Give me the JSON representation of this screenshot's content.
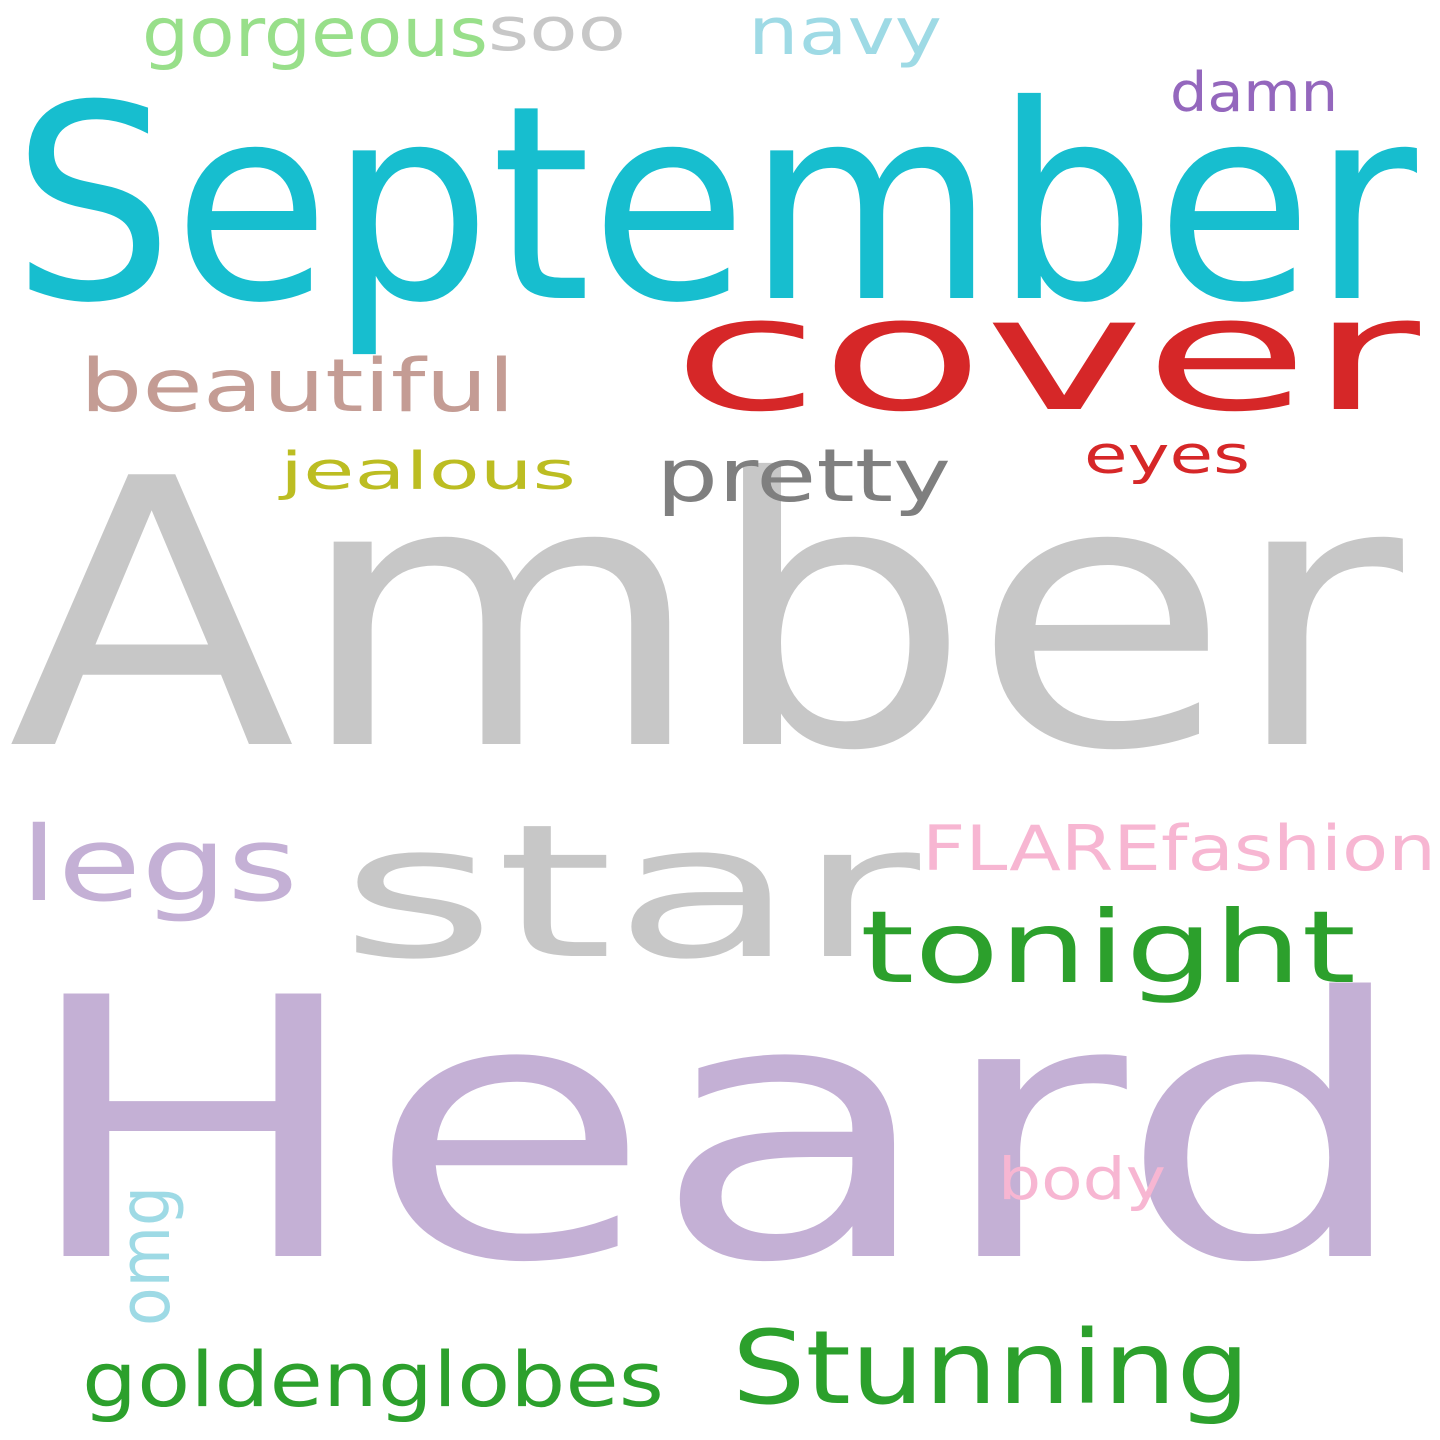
{
  "words": [
    {
      "id": "heard",
      "text": "Heard",
      "color": "#c4b0d5"
    },
    {
      "id": "amber",
      "text": "Amber",
      "color": "#c7c7c7"
    },
    {
      "id": "september",
      "text": "September",
      "color": "#17becf"
    },
    {
      "id": "cover",
      "text": "cover",
      "color": "#d62728"
    },
    {
      "id": "star",
      "text": "star",
      "color": "#c7c7c7"
    },
    {
      "id": "tonight",
      "text": "tonight",
      "color": "#2ca02c"
    },
    {
      "id": "stunning",
      "text": "Stunning",
      "color": "#2ca02c"
    },
    {
      "id": "legs",
      "text": "legs",
      "color": "#c4b0d5"
    },
    {
      "id": "beautiful",
      "text": "beautiful",
      "color": "#c49c94"
    },
    {
      "id": "pretty",
      "text": "pretty",
      "color": "#7f7f7f"
    },
    {
      "id": "goldenglobes",
      "text": "goldenglobes",
      "color": "#2ca02c"
    },
    {
      "id": "flarefashion",
      "text": "FLAREfashion",
      "color": "#f7b6d2"
    },
    {
      "id": "jealous",
      "text": "jealous",
      "color": "#bcbd22"
    },
    {
      "id": "navy",
      "text": "navy",
      "color": "#9edae5"
    },
    {
      "id": "gorgeous",
      "text": "gorgeous",
      "color": "#98df8a"
    },
    {
      "id": "soo",
      "text": "soo",
      "color": "#c7c7c7"
    },
    {
      "id": "damn",
      "text": "damn",
      "color": "#9467bd"
    },
    {
      "id": "eyes",
      "text": "eyes",
      "color": "#d62728"
    },
    {
      "id": "body",
      "text": "body",
      "color": "#f7b6d2"
    },
    {
      "id": "omg",
      "text": "omg",
      "color": "#9edae5"
    }
  ]
}
